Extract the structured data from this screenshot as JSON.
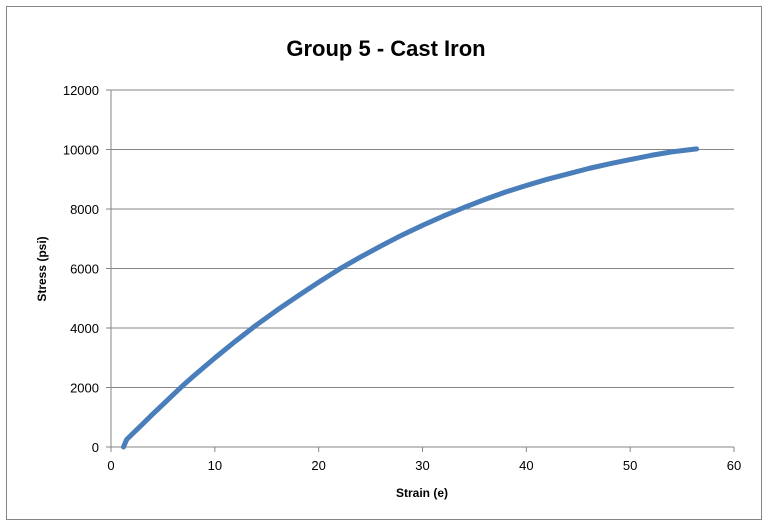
{
  "chart_data": {
    "type": "line",
    "title": "Group 5  - Cast Iron",
    "xlabel": "Strain (e)",
    "ylabel": "Stress (psi)",
    "xlim": [
      0,
      60
    ],
    "ylim": [
      0,
      12000
    ],
    "xticks": [
      0,
      10,
      20,
      30,
      40,
      50,
      60
    ],
    "yticks": [
      0,
      2000,
      4000,
      6000,
      8000,
      10000,
      12000
    ],
    "grid": "horizontal",
    "legend": "none",
    "series": [
      {
        "color": "#4a7ebb",
        "x": [
          1.2,
          1.5,
          2,
          3,
          4,
          5,
          6,
          7,
          8,
          10,
          12,
          14,
          16,
          18,
          20,
          22,
          24,
          26,
          28,
          30,
          32,
          34,
          36,
          38,
          40,
          42,
          44,
          46,
          48,
          50,
          52,
          54,
          56.4
        ],
        "y": [
          0,
          250,
          420,
          760,
          1100,
          1430,
          1760,
          2090,
          2400,
          2990,
          3560,
          4100,
          4600,
          5080,
          5540,
          5980,
          6380,
          6760,
          7120,
          7450,
          7760,
          8050,
          8320,
          8570,
          8790,
          9000,
          9180,
          9360,
          9520,
          9660,
          9800,
          9920,
          10020
        ]
      }
    ]
  }
}
